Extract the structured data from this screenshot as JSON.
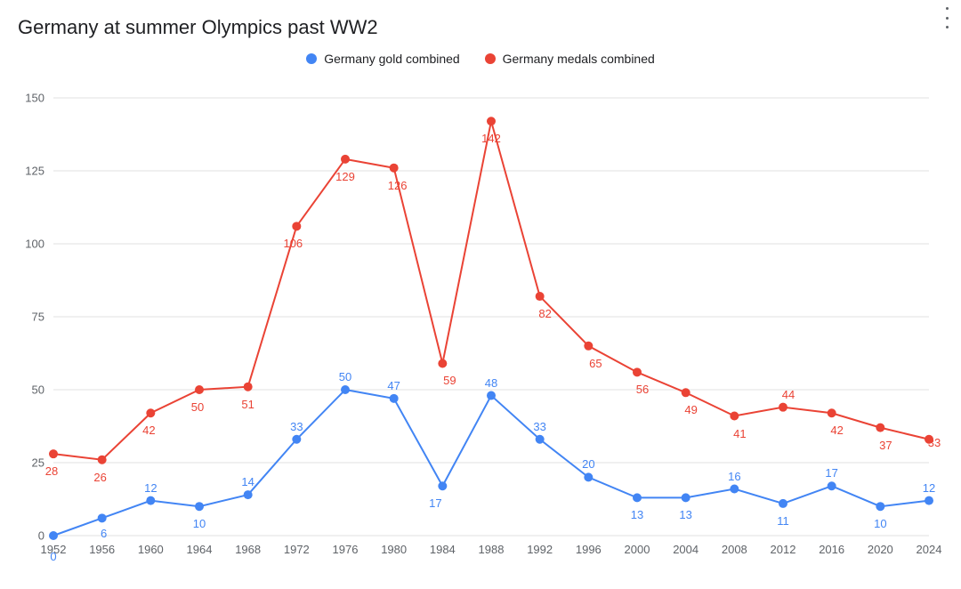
{
  "title": "Germany at summer Olympics past WW2",
  "chart": {
    "type": "line",
    "background_color": "#ffffff",
    "grid_color": "#e0e0e0",
    "axis_label_color": "#5f6368",
    "axis_label_fontsize": 13,
    "data_label_fontsize": 13,
    "title_fontsize": 22,
    "legend_fontsize": 14,
    "line_width": 2,
    "marker_radius": 5,
    "ylim": [
      0,
      150
    ],
    "ytick_step": 25,
    "yticks": [
      0,
      25,
      50,
      75,
      100,
      125,
      150
    ],
    "categories": [
      "1952",
      "1956",
      "1960",
      "1964",
      "1968",
      "1972",
      "1976",
      "1980",
      "1984",
      "1988",
      "1992",
      "1996",
      "2000",
      "2004",
      "2008",
      "2012",
      "2016",
      "2020",
      "2024"
    ],
    "series": [
      {
        "id": "gold",
        "label": "Germany gold combined",
        "color": "#4285f4",
        "marker": "circle",
        "values": [
          0,
          6,
          12,
          10,
          14,
          33,
          50,
          47,
          17,
          48,
          33,
          20,
          13,
          13,
          16,
          11,
          17,
          10,
          12
        ]
      },
      {
        "id": "medals",
        "label": "Germany medals combined",
        "color": "#ea4335",
        "marker": "circle",
        "values": [
          28,
          26,
          42,
          50,
          51,
          106,
          129,
          126,
          59,
          142,
          82,
          65,
          56,
          49,
          41,
          44,
          42,
          37,
          33
        ]
      }
    ],
    "data_label_offsets": {
      "gold": {
        "1952": {
          "dx": 0,
          "dy": 16
        },
        "1956": {
          "dx": 2,
          "dy": 10
        },
        "1960": {
          "dx": 0,
          "dy": -22
        },
        "1964": {
          "dx": 0,
          "dy": 12
        },
        "1968": {
          "dx": 0,
          "dy": -22
        },
        "1972": {
          "dx": 0,
          "dy": -22
        },
        "1976": {
          "dx": 0,
          "dy": -22
        },
        "1980": {
          "dx": 0,
          "dy": -22
        },
        "1984": {
          "dx": -8,
          "dy": 12
        },
        "1988": {
          "dx": 0,
          "dy": -22
        },
        "1992": {
          "dx": 0,
          "dy": -22
        },
        "1996": {
          "dx": 0,
          "dy": -22
        },
        "2000": {
          "dx": 0,
          "dy": 12
        },
        "2004": {
          "dx": 0,
          "dy": 12
        },
        "2008": {
          "dx": 0,
          "dy": -22
        },
        "2012": {
          "dx": 0,
          "dy": 12
        },
        "2016": {
          "dx": 0,
          "dy": -22
        },
        "2020": {
          "dx": 0,
          "dy": 12
        },
        "2024": {
          "dx": 0,
          "dy": -22
        }
      },
      "medals": {
        "1952": {
          "dx": -2,
          "dy": 12
        },
        "1956": {
          "dx": -2,
          "dy": 12
        },
        "1960": {
          "dx": -2,
          "dy": 12
        },
        "1964": {
          "dx": -2,
          "dy": 12
        },
        "1968": {
          "dx": 0,
          "dy": 12
        },
        "1972": {
          "dx": -4,
          "dy": 12
        },
        "1976": {
          "dx": 0,
          "dy": 12
        },
        "1980": {
          "dx": 4,
          "dy": 12
        },
        "1984": {
          "dx": 8,
          "dy": 12
        },
        "1988": {
          "dx": 0,
          "dy": 12
        },
        "1992": {
          "dx": 6,
          "dy": 12
        },
        "1996": {
          "dx": 8,
          "dy": 12
        },
        "2000": {
          "dx": 6,
          "dy": 12
        },
        "2004": {
          "dx": 6,
          "dy": 12
        },
        "2008": {
          "dx": 6,
          "dy": 12
        },
        "2012": {
          "dx": 6,
          "dy": -22
        },
        "2016": {
          "dx": 6,
          "dy": 12
        },
        "2020": {
          "dx": 6,
          "dy": 12
        },
        "2024": {
          "dx": 6,
          "dy": -4
        }
      }
    }
  },
  "menu": {
    "tooltip": "More options"
  }
}
